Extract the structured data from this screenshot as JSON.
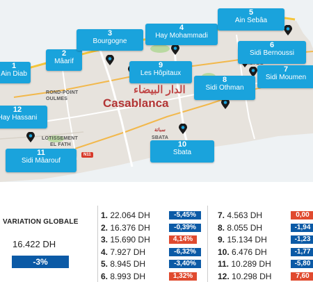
{
  "map": {
    "city_name": "Casablanca",
    "city_name_ar": "الدار البيضاء",
    "places": [
      {
        "label": "ROND-POINT"
      },
      {
        "label": "OULMES"
      },
      {
        "label": "LOTISSEMENT"
      },
      {
        "label": "EL FATH"
      },
      {
        "label": "SIDI BE"
      },
      {
        "label": "SBATA"
      },
      {
        "label": "سباتة"
      }
    ],
    "road_badge": "N11",
    "districts": [
      {
        "num": "1",
        "name": "Ain Diab"
      },
      {
        "num": "2",
        "name": "Mâarif"
      },
      {
        "num": "3",
        "name": "Bourgogne"
      },
      {
        "num": "4",
        "name": "Hay Mohammadi"
      },
      {
        "num": "5",
        "name": "Ain Sebâa"
      },
      {
        "num": "6",
        "name": "Sidi Bernoussi"
      },
      {
        "num": "7",
        "name": "Sidi Moumen"
      },
      {
        "num": "8",
        "name": "Sidi Othman"
      },
      {
        "num": "9",
        "name": "Les Hôpitaux"
      },
      {
        "num": "10",
        "name": "Sbata"
      },
      {
        "num": "11",
        "name": "Sidi Mâarouf"
      },
      {
        "num": "12",
        "name": "Hay Hassani"
      }
    ],
    "colors": {
      "callout": "#1aa3dc",
      "land": "#e7e3dd",
      "sea": "#eef2f4",
      "coast_band": "#f4c53a"
    }
  },
  "variation": {
    "title": "VARIATION GLOBALE",
    "value": "16.422 DH",
    "change": "-3%"
  },
  "rows": [
    {
      "idx": "1.",
      "price": "22.064 DH",
      "change": "-5,45%",
      "dir": "neg"
    },
    {
      "idx": "2.",
      "price": "16.376 DH",
      "change": "-0,39%",
      "dir": "neg"
    },
    {
      "idx": "3.",
      "price": "15.690 DH",
      "change": "4,14%",
      "dir": "pos"
    },
    {
      "idx": "4.",
      "price": "7.927 DH",
      "change": "-6,32%",
      "dir": "neg"
    },
    {
      "idx": "5.",
      "price": "8.945 DH",
      "change": "-3,40%",
      "dir": "neg"
    },
    {
      "idx": "6.",
      "price": "8.993  DH",
      "change": "1,32%",
      "dir": "pos"
    },
    {
      "idx": "7.",
      "price": "4.563 DH",
      "change": "0,00",
      "dir": "pos"
    },
    {
      "idx": "8.",
      "price": "8.055 DH",
      "change": "-1,94",
      "dir": "neg"
    },
    {
      "idx": "9.",
      "price": "15.134 DH",
      "change": "-1,23",
      "dir": "neg"
    },
    {
      "idx": "10.",
      "price": "6.476 DH",
      "change": "-1,77",
      "dir": "neg"
    },
    {
      "idx": "11.",
      "price": "10.289 DH",
      "change": "-5,80",
      "dir": "neg"
    },
    {
      "idx": "12.",
      "price": "10.298 DH",
      "change": "7,60",
      "dir": "pos"
    }
  ],
  "colors": {
    "negative": "#0b5aa6",
    "positive": "#e04a2f"
  }
}
